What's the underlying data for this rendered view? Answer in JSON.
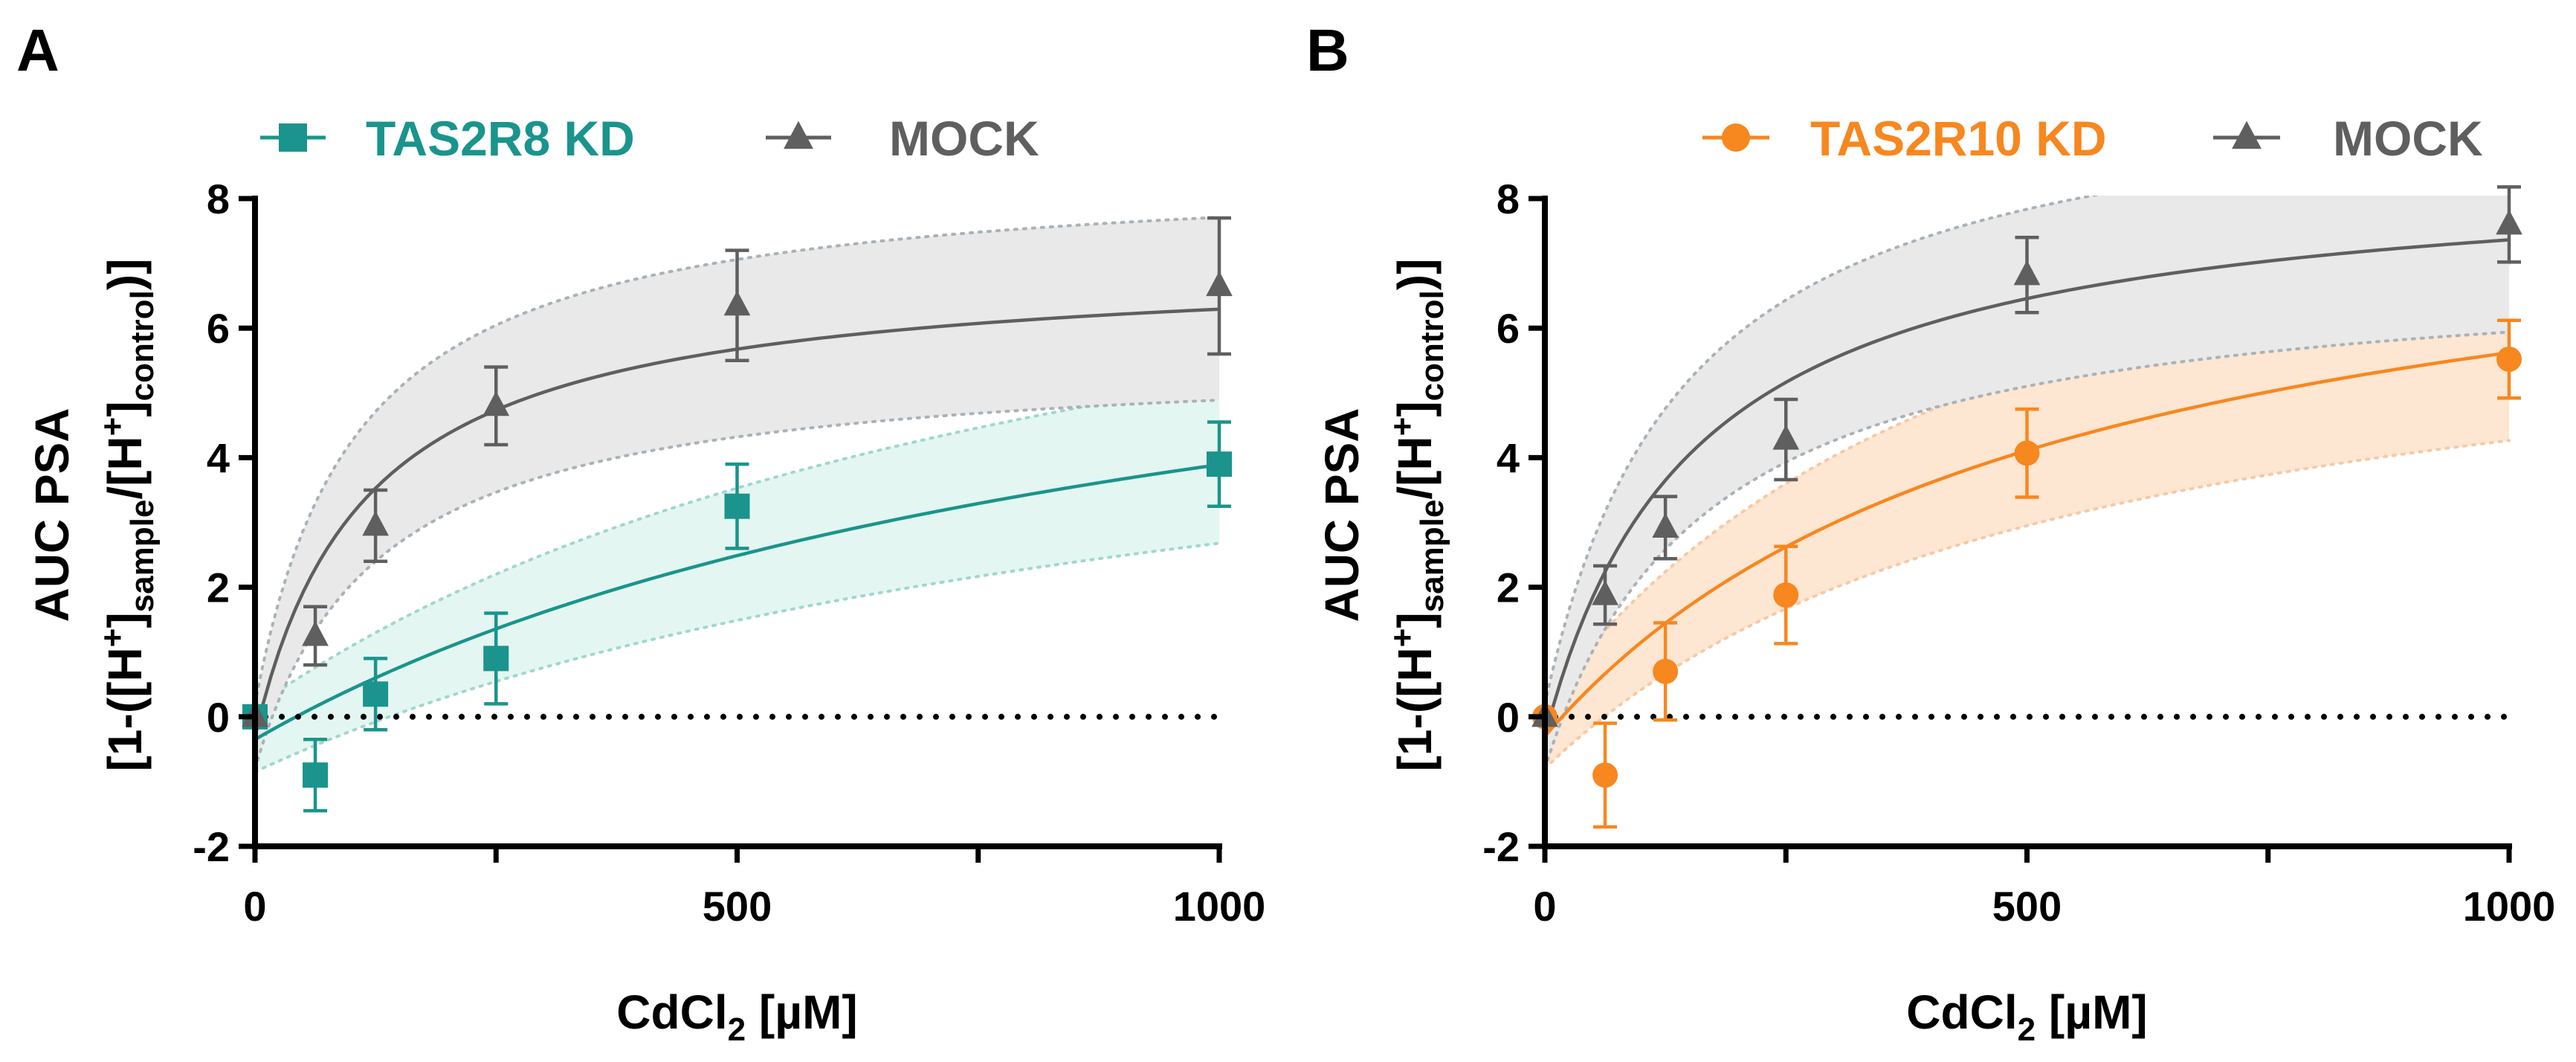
{
  "chart_data": [
    {
      "type": "scatter",
      "panel_label": "A",
      "xlabel_main": "CdCl",
      "xlabel_sub": "2",
      "xlabel_rest": " [µM]",
      "ylabel_line1": "AUC PSA",
      "ylabel_line2": {
        "p1": "[1-([H",
        "sup1": "+",
        "p2": "]",
        "sub1": "sample",
        "p3": "/[H",
        "sup2": "+",
        "p4": "]",
        "sub2": "control",
        "p5": ")]"
      },
      "xlim": [
        0,
        1000
      ],
      "ylim": [
        -2,
        8
      ],
      "xticks": [
        0,
        250,
        500,
        750,
        1000
      ],
      "xtick_labels": [
        "0",
        "",
        "500",
        "",
        "1000"
      ],
      "yticks": [
        -2,
        0,
        2,
        4,
        6,
        8
      ],
      "ytick_labels": [
        "-2",
        "0",
        "2",
        "4",
        "6",
        "8"
      ],
      "legend_position": "top",
      "series": [
        {
          "name": "TAS2R8 KD",
          "marker": "square",
          "color": "#1a948c",
          "band_color": "#e4f6f1",
          "x": [
            0,
            62.5,
            125,
            250,
            500,
            1000
          ],
          "y": [
            0,
            -0.9,
            0.35,
            0.9,
            3.25,
            3.9
          ],
          "error": [
            0,
            0.55,
            0.55,
            0.7,
            0.65,
            0.65
          ],
          "fit": {
            "model": "hyperbolic",
            "top": 8.4,
            "ec50": 980,
            "offset": -0.35
          },
          "band": {
            "upper_top": 9.6,
            "upper_ec50": 920,
            "upper_offset": 0.15,
            "lower_top": 7.2,
            "lower_ec50": 1040,
            "lower_offset": -0.85
          }
        },
        {
          "name": "MOCK",
          "marker": "triangle",
          "color": "#5f5f5f",
          "band_color": "#e9e9e9",
          "x": [
            0,
            62.5,
            125,
            250,
            500,
            1000
          ],
          "y": [
            0,
            1.25,
            2.95,
            4.8,
            6.35,
            6.65
          ],
          "error": [
            0,
            0.45,
            0.55,
            0.6,
            0.85,
            1.05
          ],
          "fit": {
            "model": "hyperbolic",
            "top": 7.35,
            "ec50": 115,
            "offset": -0.3
          },
          "band": {
            "upper_top": 8.3,
            "upper_ec50": 105,
            "upper_offset": 0.2,
            "lower_top": 6.4,
            "lower_ec50": 125,
            "lower_offset": -0.8
          }
        }
      ]
    },
    {
      "type": "scatter",
      "panel_label": "B",
      "xlabel_main": "CdCl",
      "xlabel_sub": "2",
      "xlabel_rest": " [µM]",
      "ylabel_line1": "AUC PSA",
      "ylabel_line2": {
        "p1": "[1-([H",
        "sup1": "+",
        "p2": "]",
        "sub1": "sample",
        "p3": "/[H",
        "sup2": "+",
        "p4": "]",
        "sub2": "control",
        "p5": ")]"
      },
      "xlim": [
        0,
        1000
      ],
      "ylim": [
        -2,
        8
      ],
      "xticks": [
        0,
        250,
        500,
        750,
        1000
      ],
      "xtick_labels": [
        "0",
        "",
        "500",
        "",
        "1000"
      ],
      "yticks": [
        -2,
        0,
        2,
        4,
        6,
        8
      ],
      "ytick_labels": [
        "-2",
        "0",
        "2",
        "4",
        "6",
        "8"
      ],
      "legend_position": "top",
      "series": [
        {
          "name": "TAS2R10 KD",
          "marker": "circle",
          "color": "#f7871f",
          "band_color": "#fde6d2",
          "x": [
            0,
            62.5,
            125,
            250,
            500,
            1000
          ],
          "y": [
            0,
            -0.9,
            0.7,
            1.88,
            4.07,
            5.52
          ],
          "error": [
            0,
            0.8,
            0.75,
            0.75,
            0.68,
            0.6
          ],
          "fit": {
            "model": "hyperbolic",
            "top": 9.0,
            "ec50": 520,
            "offset": -0.3
          },
          "band": {
            "upper_top": 10.2,
            "upper_ec50": 500,
            "upper_offset": 0.2,
            "lower_top": 7.8,
            "lower_ec50": 540,
            "lower_offset": -0.8
          }
        },
        {
          "name": "MOCK",
          "marker": "triangle",
          "color": "#5f5f5f",
          "band_color": "#e9e9e9",
          "x": [
            0,
            62.5,
            125,
            250,
            500,
            1000
          ],
          "y": [
            0,
            1.88,
            2.92,
            4.28,
            6.82,
            7.6
          ],
          "error": [
            0,
            0.45,
            0.48,
            0.62,
            0.58,
            0.58
          ],
          "fit": {
            "model": "hyperbolic",
            "top": 8.85,
            "ec50": 155,
            "offset": -0.3
          },
          "band": {
            "upper_top": 9.85,
            "upper_ec50": 145,
            "upper_offset": 0.2,
            "lower_top": 7.85,
            "lower_ec50": 165,
            "lower_offset": -0.8
          }
        }
      ]
    }
  ]
}
